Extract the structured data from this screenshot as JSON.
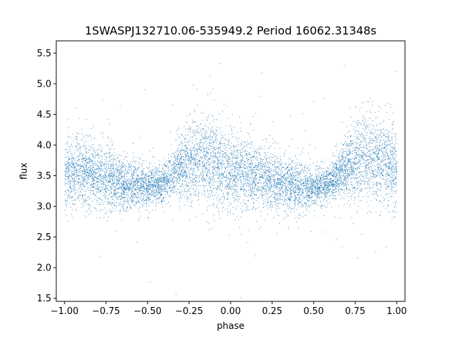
{
  "chart_data": {
    "type": "scatter",
    "title": "1SWASPJ132710.06-535949.2 Period 16062.31348s",
    "xlabel": "phase",
    "ylabel": "flux",
    "xlim": [
      -1.05,
      1.05
    ],
    "ylim": [
      1.45,
      5.7
    ],
    "xticks": [
      -1.0,
      -0.75,
      -0.5,
      -0.25,
      0.0,
      0.25,
      0.5,
      0.75,
      1.0
    ],
    "xtick_labels": [
      "−1.00",
      "−0.75",
      "−0.50",
      "−0.25",
      "0.00",
      "0.25",
      "0.50",
      "0.75",
      "1.00"
    ],
    "yticks": [
      1.5,
      2.0,
      2.5,
      3.0,
      3.5,
      4.0,
      4.5,
      5.0,
      5.5
    ],
    "ytick_labels": [
      "1.5",
      "2.0",
      "2.5",
      "3.0",
      "3.5",
      "4.0",
      "4.5",
      "5.0",
      "5.5"
    ],
    "grid": false,
    "marker_color": "#1f77b4",
    "series": [
      {
        "profile": {
          "phase": [
            -1.0,
            -0.9,
            -0.8,
            -0.7,
            -0.6,
            -0.5,
            -0.4,
            -0.3,
            -0.2,
            -0.1,
            0.0,
            0.1,
            0.2,
            0.3,
            0.4,
            0.5,
            0.6,
            0.7,
            0.8,
            0.9,
            1.0
          ],
          "lower_flux": [
            3.1,
            3.15,
            3.1,
            3.05,
            3.05,
            3.1,
            3.2,
            3.25,
            3.2,
            3.15,
            3.1,
            3.1,
            3.1,
            3.05,
            3.05,
            3.1,
            3.2,
            3.25,
            3.2,
            3.15,
            3.1
          ],
          "upper_flux": [
            4.2,
            4.15,
            4.05,
            3.95,
            3.8,
            3.7,
            3.75,
            4.2,
            4.55,
            4.45,
            4.25,
            4.1,
            4.0,
            3.9,
            3.8,
            3.7,
            3.75,
            4.2,
            4.55,
            4.45,
            4.25
          ]
        }
      }
    ]
  }
}
